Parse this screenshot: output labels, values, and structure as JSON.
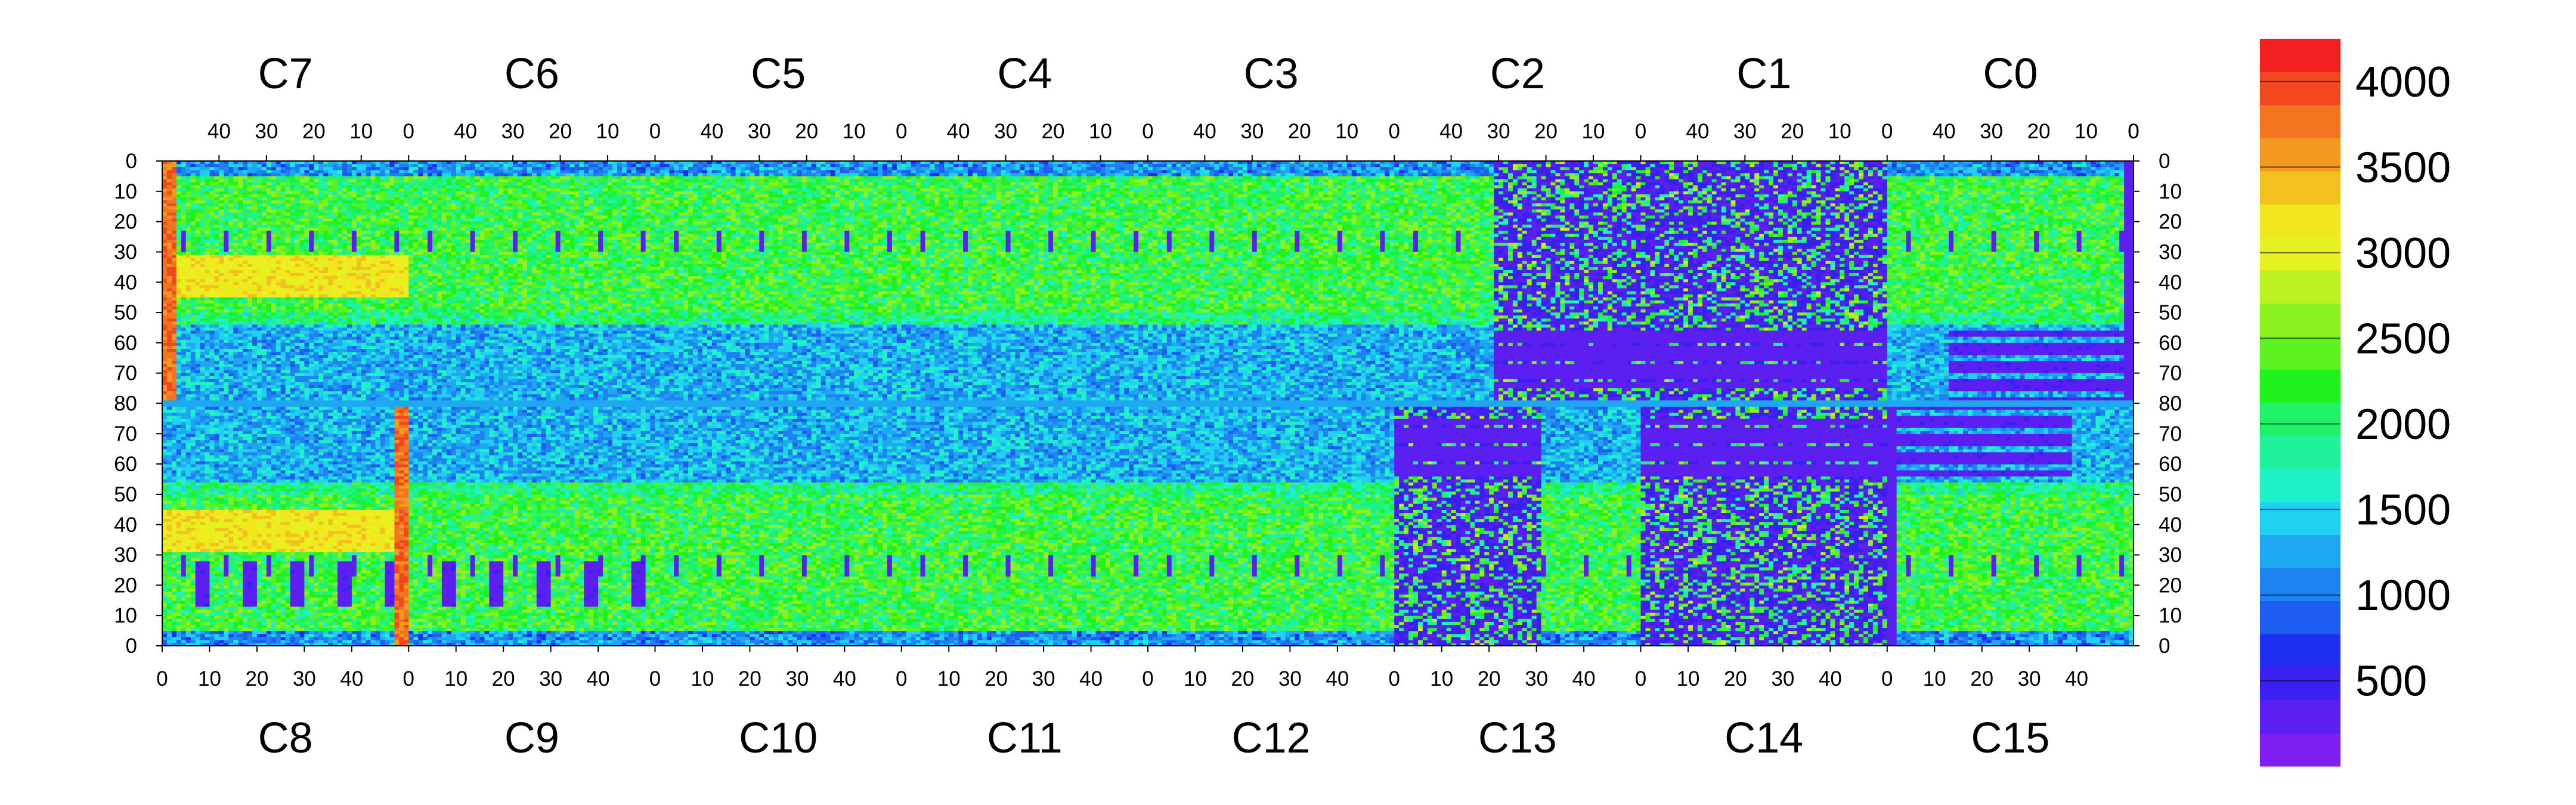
{
  "chart_data": {
    "type": "heatmap",
    "title": "",
    "top_chips": [
      "C7",
      "C6",
      "C5",
      "C4",
      "C3",
      "C2",
      "C1",
      "C0"
    ],
    "bottom_chips": [
      "C8",
      "C9",
      "C10",
      "C11",
      "C12",
      "C13",
      "C14",
      "C15"
    ],
    "chip_columns": 52,
    "rows_per_half": 80,
    "top_column_ticks": [
      40,
      30,
      20,
      10,
      0
    ],
    "bottom_column_ticks": [
      0,
      10,
      20,
      30,
      40
    ],
    "row_tick_labels": [
      "0",
      "10",
      "20",
      "30",
      "40",
      "50",
      "60",
      "70",
      "80",
      "70",
      "60",
      "50",
      "40",
      "30",
      "20",
      "10",
      "0"
    ],
    "colorbar": {
      "min": 0,
      "max": 4250,
      "ticks": [
        500,
        1000,
        1500,
        2000,
        2500,
        3000,
        3500,
        4000
      ],
      "tick_labels": [
        "500",
        "1000",
        "1500",
        "2000",
        "2500",
        "3000",
        "3500",
        "4000"
      ],
      "colors": [
        "#7f1ff2",
        "#5c1ff2",
        "#3a1ff2",
        "#1f2ff2",
        "#1f5df2",
        "#1f82f2",
        "#1fa8f2",
        "#1fd2f2",
        "#1ff2c8",
        "#1ff29a",
        "#1ff267",
        "#1ff21f",
        "#5cf21f",
        "#8cf21f",
        "#bcf21f",
        "#e6f21f",
        "#f2e61f",
        "#f2c01f",
        "#f29a1f",
        "#f2741f",
        "#f2471f",
        "#f21f1f"
      ]
    },
    "typical_levels": {
      "background": 2200,
      "dense_region": 2400,
      "bright_stripe": 3800,
      "dead_region": 250,
      "cyan_region": 1300
    }
  }
}
